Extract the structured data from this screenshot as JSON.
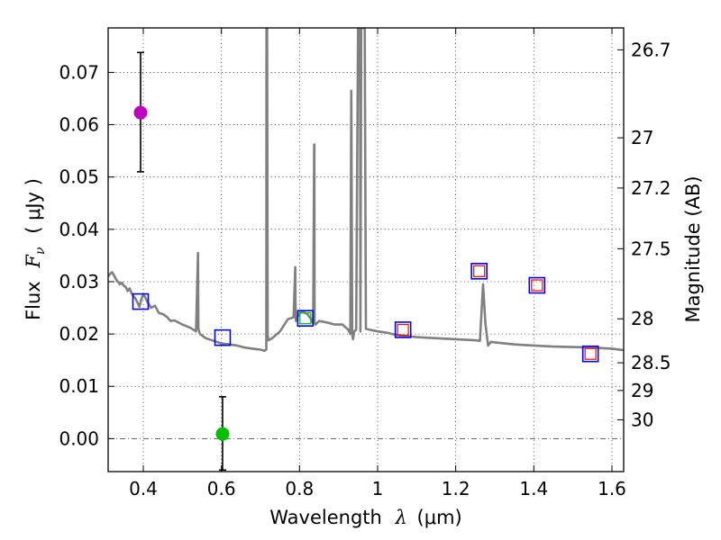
{
  "chart_data": {
    "type": "scatter",
    "title": "",
    "xlabel": "Wavelength",
    "xlabel_symbol": "λ",
    "xlabel_unit": "(μm)",
    "ylabel": "Flux",
    "ylabel_symbol": "F",
    "ylabel_subscript": "ν",
    "ylabel_unit": "( μJy )",
    "y2label": "Magnitude (AB)",
    "xlim": [
      0.31,
      1.63
    ],
    "ylim": [
      -0.0063,
      0.0785
    ],
    "grid": true,
    "x_ticks": [
      0.4,
      0.6,
      0.8,
      1.0,
      1.2,
      1.4,
      1.6
    ],
    "x_tick_labels": [
      "0.4",
      "0.6",
      "0.8",
      "1",
      "1.2",
      "1.4",
      "1.6"
    ],
    "y_ticks": [
      0.0,
      0.01,
      0.02,
      0.03,
      0.04,
      0.05,
      0.06,
      0.07
    ],
    "y_tick_labels": [
      "0.00",
      "0.01",
      "0.02",
      "0.03",
      "0.04",
      "0.05",
      "0.06",
      "0.07"
    ],
    "y2_ticks": [
      {
        "flux": 0.0743,
        "label": "26.7"
      },
      {
        "flux": 0.0575,
        "label": "27"
      },
      {
        "flux": 0.0479,
        "label": "27.2"
      },
      {
        "flux": 0.0363,
        "label": "27.5"
      },
      {
        "flux": 0.0229,
        "label": "28"
      },
      {
        "flux": 0.0145,
        "label": "28.5"
      },
      {
        "flux": 0.0092,
        "label": "29"
      },
      {
        "flux": 0.0036,
        "label": "30"
      }
    ],
    "colors": {
      "sed": "#808080",
      "model_box": "#0000ff",
      "obs_box": "#ff0000",
      "detection_1": "#bf00bf",
      "detection_2": "#00bf00",
      "obs_box_green": "#00bf00",
      "errorbar": "#000000"
    },
    "series": [
      {
        "kind": "sed-line",
        "x": [
          0.31,
          0.315,
          0.32,
          0.325,
          0.33,
          0.335,
          0.34,
          0.345,
          0.35,
          0.355,
          0.36,
          0.365,
          0.37,
          0.375,
          0.38,
          0.385,
          0.39,
          0.395,
          0.4,
          0.405,
          0.41,
          0.42,
          0.43,
          0.44,
          0.45,
          0.46,
          0.47,
          0.48,
          0.5,
          0.52,
          0.535,
          0.54,
          0.541,
          0.545,
          0.56,
          0.58,
          0.6,
          0.62,
          0.64,
          0.66,
          0.68,
          0.7,
          0.71,
          0.715,
          0.7155,
          0.717,
          0.7185,
          0.72,
          0.73,
          0.75,
          0.77,
          0.785,
          0.789,
          0.79,
          0.791,
          0.795,
          0.8,
          0.81,
          0.82,
          0.83,
          0.835,
          0.8375,
          0.838,
          0.8385,
          0.841,
          0.85,
          0.87,
          0.89,
          0.91,
          0.925,
          0.93,
          0.9325,
          0.935,
          0.937,
          0.94,
          0.945,
          0.95,
          0.955,
          0.956,
          0.958,
          0.962,
          0.965,
          0.967,
          0.97,
          0.98,
          1.0,
          1.02,
          1.05,
          1.1,
          1.15,
          1.2,
          1.25,
          1.262,
          1.27,
          1.276,
          1.283,
          1.29,
          1.3,
          1.35,
          1.4,
          1.45,
          1.5,
          1.55,
          1.6,
          1.63
        ],
        "y": [
          0.031,
          0.0315,
          0.0318,
          0.0312,
          0.0305,
          0.03,
          0.0295,
          0.0298,
          0.0292,
          0.029,
          0.0282,
          0.0287,
          0.0278,
          0.0272,
          0.0268,
          0.026,
          0.0252,
          0.0266,
          0.0276,
          0.027,
          0.0262,
          0.025,
          0.0254,
          0.024,
          0.0238,
          0.0233,
          0.0225,
          0.0226,
          0.0218,
          0.0212,
          0.0205,
          0.0355,
          0.021,
          0.02,
          0.0192,
          0.0187,
          0.0182,
          0.018,
          0.0178,
          0.0174,
          0.0172,
          0.017,
          0.0168,
          0.017,
          0.0785,
          0.0785,
          0.02,
          0.0188,
          0.0192,
          0.0205,
          0.0228,
          0.0232,
          0.0328,
          0.0235,
          0.0225,
          0.0233,
          0.024,
          0.0242,
          0.0238,
          0.0228,
          0.022,
          0.0562,
          0.0562,
          0.022,
          0.0218,
          0.0225,
          0.0222,
          0.0218,
          0.0218,
          0.0208,
          0.02,
          0.0665,
          0.02,
          0.019,
          0.0205,
          0.0208,
          0.0785,
          0.0785,
          0.0205,
          0.0785,
          0.0785,
          0.0785,
          0.0785,
          0.021,
          0.0208,
          0.0205,
          0.0203,
          0.0198,
          0.0194,
          0.0192,
          0.019,
          0.0188,
          0.0187,
          0.0295,
          0.022,
          0.0178,
          0.0185,
          0.0184,
          0.018,
          0.0178,
          0.0176,
          0.0175,
          0.0174,
          0.0172,
          0.0169
        ]
      },
      {
        "kind": "model-boxes",
        "x": [
          0.393,
          0.603,
          0.815,
          1.065,
          1.26,
          1.408,
          1.545
        ],
        "y": [
          0.0262,
          0.0193,
          0.023,
          0.0208,
          0.032,
          0.0293,
          0.0162
        ]
      },
      {
        "kind": "observed-boxes",
        "x": [
          1.065,
          1.26,
          1.408,
          1.545
        ],
        "y": [
          0.0208,
          0.032,
          0.0293,
          0.0162
        ]
      },
      {
        "kind": "observed-boxes-green",
        "x": [
          0.815
        ],
        "y": [
          0.023
        ]
      },
      {
        "kind": "detections",
        "points": [
          {
            "x": 0.393,
            "y": 0.0623,
            "yerr_lo": 0.051,
            "yerr_hi": 0.0738,
            "color_key": "detection_1"
          },
          {
            "x": 0.603,
            "y": 0.0009,
            "yerr_lo": -0.006,
            "yerr_hi": 0.008,
            "color_key": "detection_2"
          }
        ]
      }
    ]
  }
}
